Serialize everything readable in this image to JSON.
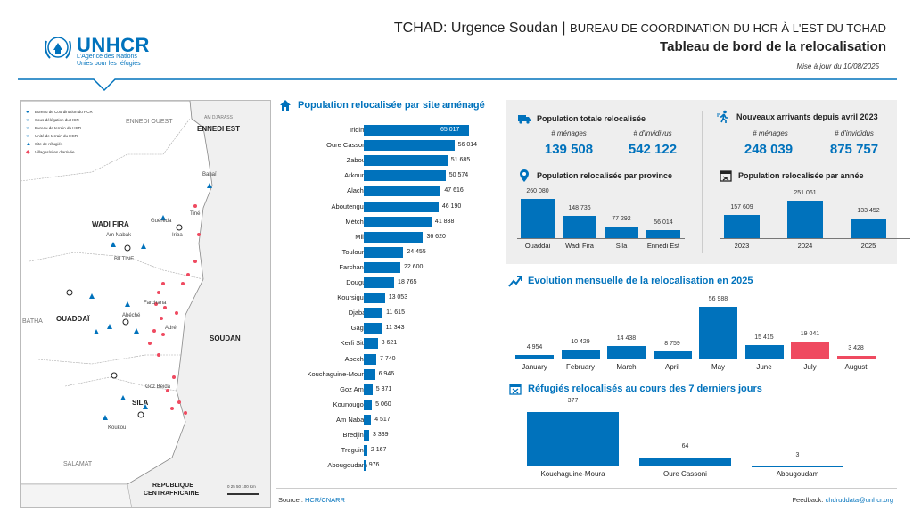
{
  "header": {
    "org_name": "UNHCR",
    "org_tagline_1": "L'Agence des Nations",
    "org_tagline_2": "Unies pour les réfugiés",
    "title_prefix": "TCHAD: Urgence Soudan | ",
    "title_suffix": "BUREAU DE COORDINATION DU HCR À L'EST DU TCHAD",
    "subtitle": "Tableau de bord de la relocalisation",
    "update_date": "Mise à jour du 10/08/2025",
    "accent_color": "#0072bc"
  },
  "map": {
    "legend": [
      {
        "symbol": "●",
        "label": "Bureau de Coordination du HCR"
      },
      {
        "symbol": "○",
        "label": "Sous-délégation du HCR"
      },
      {
        "symbol": "○",
        "label": "Bureau de terrain du HCR"
      },
      {
        "symbol": "○",
        "label": "Unité de terrain du HCR"
      },
      {
        "symbol": "▲",
        "label": "Site de réfugiés"
      },
      {
        "symbol": "◆",
        "label": "Villages/sites d'arrivée"
      }
    ],
    "labels": {
      "ennedi_ouest": "ENNEDI OUEST",
      "ennedi_est": "ENNEDI EST",
      "libye_border": "AM DJARASS",
      "wadi_fira": "WADI FIRA",
      "ouaddai": "OUADDAÏ",
      "sila": "SILA",
      "soudan": "SOUDAN",
      "batha": "BATHA",
      "salamat": "SALAMAT",
      "rca_1": "REPUBLIQUE",
      "rca_2": "CENTRAFRICAINE",
      "biltine": "BILTINE",
      "abeche": "Abéché",
      "goz_beida": "Goz Beida",
      "adre": "Adré",
      "farchana": "Farchana",
      "iriba": "Iriba",
      "guereda": "Guéréda",
      "bahai": "Bahaï",
      "tine": "Tiné",
      "am_nabak": "Am Nabak",
      "koukou": "Koukou"
    },
    "scale_label": "0  25  50  100 Km"
  },
  "relocated_by_site": {
    "title": "Population relocalisée par site aménagé",
    "icon": "house-icon",
    "chart_data": {
      "type": "bar",
      "orientation": "horizontal",
      "categories": [
        "Iridimi",
        "Oure Cassoni",
        "Zabout",
        "Arkoum",
        "Alacha",
        "Aboutengue",
        "Métché",
        "Mile",
        "Touloum",
        "Farchana",
        "Dougui",
        "Koursigue",
        "Djabal",
        "Gaga",
        "Kerfi Site",
        "Abeche",
        "Kouchaguine-Moura",
        "Goz Amir",
        "Kounougou",
        "Am Nabak",
        "Bredjing",
        "Treguine",
        "Abougoudam"
      ],
      "values": [
        65017,
        56014,
        51685,
        50574,
        47616,
        46190,
        41838,
        36620,
        24455,
        22600,
        18765,
        13053,
        11615,
        11343,
        8621,
        7740,
        6946,
        5371,
        5060,
        4517,
        3339,
        2167,
        976
      ],
      "value_labels": [
        "65 017",
        "56 014",
        "51 685",
        "50 574",
        "47 616",
        "46 190",
        "41 838",
        "36 620",
        "24 455",
        "22 600",
        "18 765",
        "13 053",
        "11 615",
        "11 343",
        "8 621",
        "7 740",
        "6 946",
        "5 371",
        "5 060",
        "4 517",
        "3 339",
        "2 167",
        "976"
      ],
      "color": "#0072bc"
    }
  },
  "total_relocated": {
    "title": "Population totale relocalisée",
    "icon": "truck-icon",
    "households_caption": "# ménages",
    "households_value": "139 508",
    "individuals_caption": "# d'invidivus",
    "individuals_value": "542 122"
  },
  "new_arrivals": {
    "title": "Nouveaux arrivants depuis avril 2023",
    "icon": "running-person-icon",
    "households_caption": "# ménages",
    "households_value": "248 039",
    "individuals_caption": "# d'invididus",
    "individuals_value": "875 757"
  },
  "by_province": {
    "title": "Population relocalisée par province",
    "icon": "map-pin-icon",
    "chart_data": {
      "type": "bar",
      "categories": [
        "Ouaddai",
        "Wadi Fira",
        "Sila",
        "Ennedi Est"
      ],
      "values": [
        260080,
        148736,
        77292,
        56014
      ],
      "value_labels": [
        "260 080",
        "148 736",
        "77 292",
        "56 014"
      ],
      "color": "#0072bc"
    }
  },
  "by_year": {
    "title": "Population relocalisée par année",
    "icon": "calendar-icon",
    "chart_data": {
      "type": "bar",
      "categories": [
        "2023",
        "2024",
        "2025"
      ],
      "values": [
        157609,
        251061,
        133452
      ],
      "value_labels": [
        "157 609",
        "251 061",
        "133 452"
      ],
      "color": "#0072bc"
    }
  },
  "monthly": {
    "title": "Evolution mensuelle de la relocalisation en 2025",
    "icon": "trend-up-icon",
    "chart_data": {
      "type": "bar",
      "categories": [
        "January",
        "February",
        "March",
        "April",
        "May",
        "June",
        "July",
        "August"
      ],
      "values": [
        4954,
        10429,
        14438,
        8759,
        56988,
        15415,
        19041,
        3428
      ],
      "value_labels": [
        "4 954",
        "10 429",
        "14 438",
        "8 759",
        "56 988",
        "15 415",
        "19 041",
        "3 428"
      ],
      "colors": [
        "#0072bc",
        "#0072bc",
        "#0072bc",
        "#0072bc",
        "#0072bc",
        "#0072bc",
        "#ef4a60",
        "#ef4a60"
      ]
    }
  },
  "last_7_days": {
    "title": "Réfugiés relocalisés au cours des 7 derniers jours",
    "icon": "calendar-x-icon",
    "chart_data": {
      "type": "bar",
      "categories": [
        "Kouchaguine-Moura",
        "Oure Cassoni",
        "Abougoudam"
      ],
      "values": [
        377,
        64,
        3
      ],
      "value_labels": [
        "377",
        "64",
        "3"
      ],
      "color": "#0072bc"
    }
  },
  "footer": {
    "source_label": "Source : ",
    "source_value": "HCR/CNARR",
    "feedback_label": "Feedback: ",
    "feedback_value": "chdruddata@unhcr.org"
  }
}
